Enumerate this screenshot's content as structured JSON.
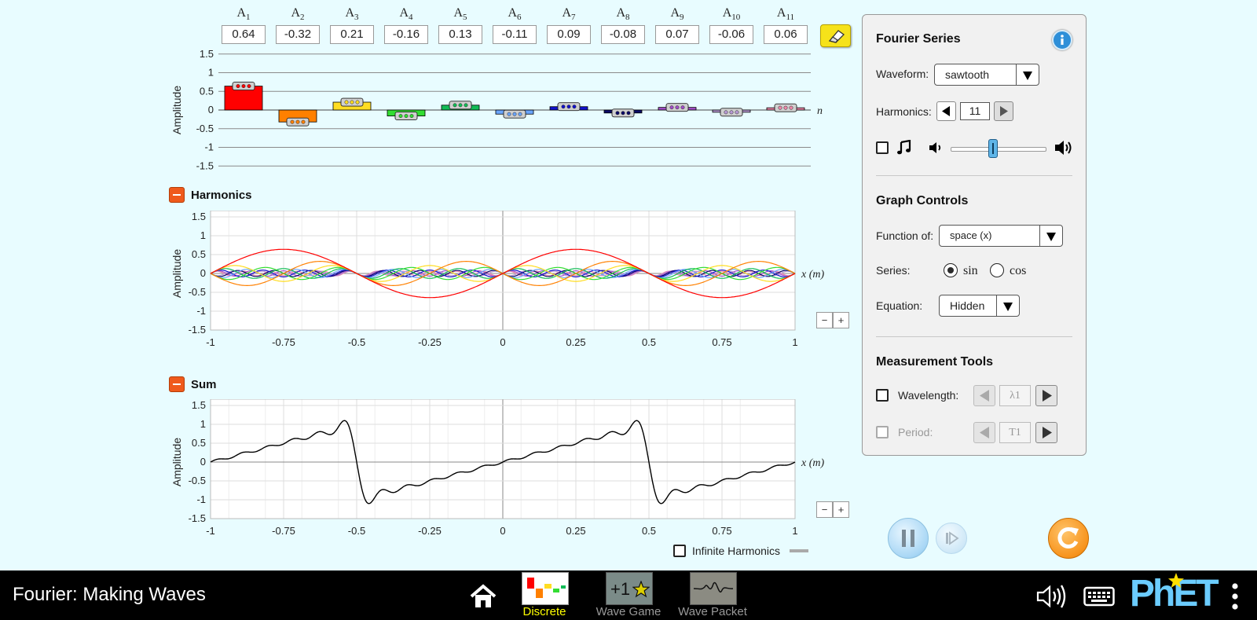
{
  "amplitudes": {
    "labels": [
      "A1",
      "A2",
      "A3",
      "A4",
      "A5",
      "A6",
      "A7",
      "A8",
      "A9",
      "A10",
      "A11"
    ],
    "subs": [
      "1",
      "2",
      "3",
      "4",
      "5",
      "6",
      "7",
      "8",
      "9",
      "10",
      "11"
    ],
    "values": [
      "0.64",
      "-0.32",
      "0.21",
      "-0.16",
      "0.13",
      "-0.11",
      "0.09",
      "-0.08",
      "0.07",
      "-0.06",
      "0.06"
    ],
    "axis_label": "Amplitude",
    "yticks": [
      "1.5",
      "1",
      "0.5",
      "0",
      "-0.5",
      "-1",
      "-1.5"
    ],
    "n_label": "n",
    "colors": [
      "#ff0000",
      "#ff8000",
      "#ffdd22",
      "#33dd33",
      "#11bb55",
      "#6aa5ff",
      "#1111cc",
      "#0a0a66",
      "#a24ec8",
      "#b89ad4",
      "#ee88aa"
    ]
  },
  "harmonics": {
    "title": "Harmonics",
    "axis_label": "Amplitude",
    "x_unit_label": "x (m)",
    "xticks": [
      "-1",
      "-0.75",
      "-0.5",
      "-0.25",
      "0",
      "0.25",
      "0.5",
      "0.75",
      "1"
    ],
    "yticks": [
      "1.5",
      "1",
      "0.5",
      "0",
      "-0.5",
      "-1",
      "-1.5"
    ]
  },
  "sum": {
    "title": "Sum",
    "axis_label": "Amplitude",
    "x_unit_label": "x (m)",
    "xticks": [
      "-1",
      "-0.75",
      "-0.5",
      "-0.25",
      "0",
      "0.25",
      "0.5",
      "0.75",
      "1"
    ],
    "yticks": [
      "1.5",
      "1",
      "0.5",
      "0",
      "-0.5",
      "-1",
      "-1.5"
    ],
    "infinite_label": "Infinite Harmonics"
  },
  "zoom": {
    "minus": "−",
    "plus": "+"
  },
  "panel": {
    "fourier_title": "Fourier Series",
    "waveform_label": "Waveform:",
    "waveform_value": "sawtooth",
    "harmonics_label": "Harmonics:",
    "harmonics_value": "11",
    "graph_title": "Graph Controls",
    "function_label": "Function of:",
    "function_value": "space (x)",
    "series_label": "Series:",
    "series_sin": "sin",
    "series_cos": "cos",
    "equation_label": "Equation:",
    "equation_value": "Hidden",
    "measure_title": "Measurement Tools",
    "wavelength_label": "Wavelength:",
    "wavelength_symbol": "λ1",
    "period_label": "Period:",
    "period_symbol": "T1"
  },
  "volume_level": 0.45,
  "app_title": "Fourier: Making Waves",
  "nav": {
    "discrete": "Discrete",
    "wave_game": "Wave Game",
    "wave_packet": "Wave Packet",
    "game_badge": "+1"
  },
  "brand": "PhET",
  "colors": {
    "accent": "#ef5a1c",
    "selected_nav": "#ffff00"
  }
}
